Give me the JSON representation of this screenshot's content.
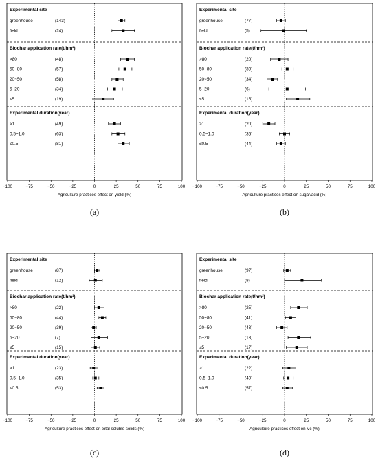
{
  "chart_data": [
    {
      "type": "forest",
      "panel_label": "(a)",
      "xlabel": "Agriculture practices effect on yield (%)",
      "xlim": [
        -100,
        100
      ],
      "xticks": [
        -100,
        -75,
        -50,
        -25,
        0,
        25,
        50,
        75,
        100
      ],
      "groups": [
        {
          "header": "Experimental site",
          "rows": [
            {
              "label": "greenhouse",
              "n": "(143)",
              "mean": 31,
              "lo": 27,
              "hi": 35
            },
            {
              "label": "field",
              "n": "(24)",
              "mean": 33,
              "lo": 20,
              "hi": 46
            }
          ]
        },
        {
          "header": "Biochar application rate(t/hm²)",
          "rows": [
            {
              "label": ">80",
              "n": "(48)",
              "mean": 38,
              "lo": 30,
              "hi": 46
            },
            {
              "label": "50~80",
              "n": "(57)",
              "mean": 35,
              "lo": 28,
              "hi": 43
            },
            {
              "label": "20~50",
              "n": "(58)",
              "mean": 26,
              "lo": 20,
              "hi": 33
            },
            {
              "label": "5~20",
              "n": "(34)",
              "mean": 23,
              "lo": 15,
              "hi": 32
            },
            {
              "label": "≤5",
              "n": "(19)",
              "mean": 10,
              "lo": -2,
              "hi": 22
            }
          ]
        },
        {
          "header": "Experimental duration(year)",
          "rows": [
            {
              "label": ">1",
              "n": "(49)",
              "mean": 23,
              "lo": 16,
              "hi": 30
            },
            {
              "label": "0.5~1.0",
              "n": "(63)",
              "mean": 27,
              "lo": 20,
              "hi": 35
            },
            {
              "label": "≤0.5",
              "n": "(81)",
              "mean": 33,
              "lo": 27,
              "hi": 40
            }
          ]
        }
      ]
    },
    {
      "type": "forest",
      "panel_label": "(b)",
      "xlabel": "Agriculture practices effect on sugar/acid (%)",
      "xlim": [
        -100,
        100
      ],
      "xticks": [
        -100,
        -75,
        -50,
        -25,
        0,
        25,
        50,
        75,
        100
      ],
      "groups": [
        {
          "header": "Experimental site",
          "rows": [
            {
              "label": "greenhouse",
              "n": "(77)",
              "mean": -4,
              "lo": -9,
              "hi": 1
            },
            {
              "label": "field",
              "n": "(5)",
              "mean": -1,
              "lo": -27,
              "hi": 25
            }
          ]
        },
        {
          "header": "Biochar application rate(t/hm²)",
          "rows": [
            {
              "label": ">80",
              "n": "(20)",
              "mean": -6,
              "lo": -16,
              "hi": 4
            },
            {
              "label": "50~80",
              "n": "(39)",
              "mean": 3,
              "lo": -3,
              "hi": 10
            },
            {
              "label": "20~50",
              "n": "(34)",
              "mean": -14,
              "lo": -20,
              "hi": -8
            },
            {
              "label": "5~20",
              "n": "(6)",
              "mean": 3,
              "lo": -18,
              "hi": 24
            },
            {
              "label": "≤5",
              "n": "(15)",
              "mean": 15,
              "lo": 2,
              "hi": 29
            }
          ]
        },
        {
          "header": "Experimental duration(year)",
          "rows": [
            {
              "label": ">1",
              "n": "(20)",
              "mean": -18,
              "lo": -25,
              "hi": -11
            },
            {
              "label": "0.5~1.0",
              "n": "(36)",
              "mean": 0,
              "lo": -6,
              "hi": 6
            },
            {
              "label": "≤0.5",
              "n": "(44)",
              "mean": -4,
              "lo": -9,
              "hi": 1
            }
          ]
        }
      ]
    },
    {
      "type": "forest",
      "panel_label": "(c)",
      "xlabel": "Agriculture practices effect on total soluble solids (%)",
      "xlim": [
        -100,
        100
      ],
      "xticks": [
        -100,
        -75,
        -50,
        -25,
        0,
        25,
        50,
        75,
        100
      ],
      "groups": [
        {
          "header": "Experimental site",
          "rows": [
            {
              "label": "greenhouse",
              "n": "(87)",
              "mean": 3,
              "lo": 0,
              "hi": 6
            },
            {
              "label": "field",
              "n": "(12)",
              "mean": 1,
              "lo": -6,
              "hi": 9
            }
          ]
        },
        {
          "header": "Biochar application rate(t/hm²)",
          "rows": [
            {
              "label": ">80",
              "n": "(22)",
              "mean": 5,
              "lo": 0,
              "hi": 11
            },
            {
              "label": "50~80",
              "n": "(44)",
              "mean": 9,
              "lo": 5,
              "hi": 13
            },
            {
              "label": "20~50",
              "n": "(39)",
              "mean": -1,
              "lo": -4,
              "hi": 2
            },
            {
              "label": "5~20",
              "n": "(7)",
              "mean": 5,
              "lo": -4,
              "hi": 15
            },
            {
              "label": "≤5",
              "n": "(15)",
              "mean": 1,
              "lo": -4,
              "hi": 6
            }
          ]
        },
        {
          "header": "Experimental duration(year)",
          "rows": [
            {
              "label": ">1",
              "n": "(23)",
              "mean": -1,
              "lo": -5,
              "hi": 4
            },
            {
              "label": "0.5~1.0",
              "n": "(35)",
              "mean": 1,
              "lo": -2,
              "hi": 5
            },
            {
              "label": "≤0.5",
              "n": "(53)",
              "mean": 7,
              "lo": 3,
              "hi": 11
            }
          ]
        }
      ]
    },
    {
      "type": "forest",
      "panel_label": "(d)",
      "xlabel": "Agriculture practices effect on Vc (%)",
      "xlim": [
        -100,
        100
      ],
      "xticks": [
        -100,
        -75,
        -50,
        -25,
        0,
        25,
        50,
        75,
        100
      ],
      "groups": [
        {
          "header": "Experimental site",
          "rows": [
            {
              "label": "greenhouse",
              "n": "(97)",
              "mean": 3,
              "lo": -1,
              "hi": 7
            },
            {
              "label": "field",
              "n": "(8)",
              "mean": 20,
              "lo": 0,
              "hi": 42
            }
          ]
        },
        {
          "header": "Biochar application rate(t/hm²)",
          "rows": [
            {
              "label": ">80",
              "n": "(25)",
              "mean": 16,
              "lo": 7,
              "hi": 26
            },
            {
              "label": "50~80",
              "n": "(41)",
              "mean": 7,
              "lo": 1,
              "hi": 13
            },
            {
              "label": "20~50",
              "n": "(43)",
              "mean": -3,
              "lo": -9,
              "hi": 3
            },
            {
              "label": "5~20",
              "n": "(13)",
              "mean": 16,
              "lo": 4,
              "hi": 30
            },
            {
              "label": "≤5",
              "n": "(17)",
              "mean": 14,
              "lo": 2,
              "hi": 26
            }
          ]
        },
        {
          "header": "Experimental duration(year)",
          "rows": [
            {
              "label": ">1",
              "n": "(22)",
              "mean": 5,
              "lo": -2,
              "hi": 13
            },
            {
              "label": "0.5~1.0",
              "n": "(40)",
              "mean": 4,
              "lo": -1,
              "hi": 10
            },
            {
              "label": "≤0.5",
              "n": "(57)",
              "mean": 3,
              "lo": -2,
              "hi": 9
            }
          ]
        }
      ]
    }
  ]
}
